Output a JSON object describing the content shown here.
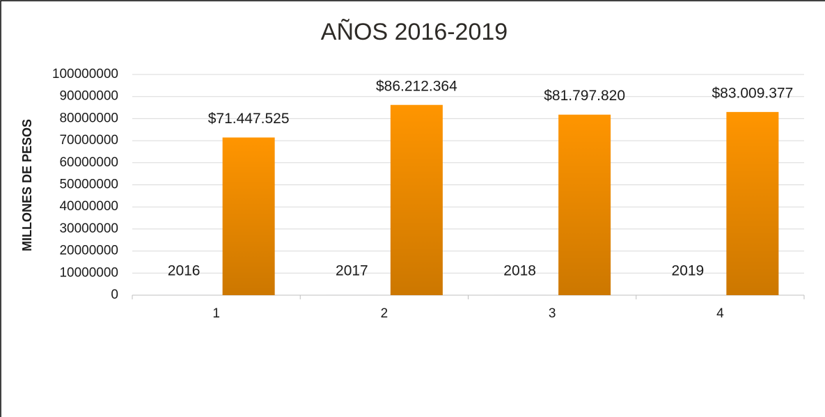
{
  "chart_data": {
    "type": "bar",
    "title": "AÑOS 2016-2019",
    "y_label": "MILLONES DE PESOS",
    "categories": [
      "1",
      "2",
      "3",
      "4"
    ],
    "series": [
      {
        "color": "#4472c4",
        "values": [
          2016,
          2017,
          2018,
          2019
        ]
      },
      {
        "color": "#ff9500",
        "values": [
          71447525,
          86212364,
          81797820,
          83009377
        ],
        "value_labels": [
          "$71.447.525",
          "$86.212.364",
          "$81.797.820",
          "$83.009.377"
        ]
      }
    ],
    "ylim": [
      0,
      100000000
    ],
    "yticks": [
      0,
      10000000,
      20000000,
      30000000,
      40000000,
      50000000,
      60000000,
      70000000,
      80000000,
      90000000,
      100000000
    ],
    "grid": true
  }
}
